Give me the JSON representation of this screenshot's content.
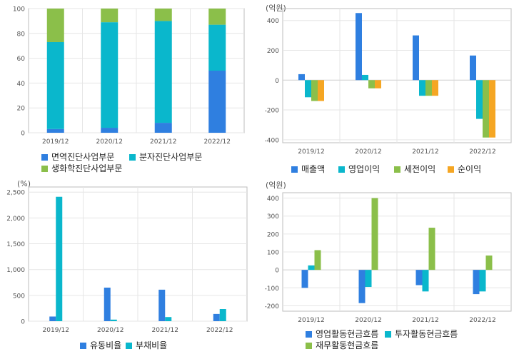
{
  "colors": {
    "blue": "#2f7fe0",
    "cyan": "#0ab7cc",
    "green": "#8bbf4a",
    "orange": "#f5a623",
    "grid": "#e6e6e6",
    "axis": "#bdbdbd"
  },
  "chart_data": [
    {
      "type": "bar",
      "stacked": true,
      "unit_label": "",
      "categories": [
        "2019/12",
        "2020/12",
        "2021/12",
        "2022/12"
      ],
      "series": [
        {
          "name": "면역진단사업부문",
          "color": "#2f7fe0",
          "values": [
            3,
            4,
            8,
            50
          ]
        },
        {
          "name": "분자진단사업부문",
          "color": "#0ab7cc",
          "values": [
            70,
            85,
            82,
            37
          ]
        },
        {
          "name": "생화학진단사업부문",
          "color": "#8bbf4a",
          "values": [
            27,
            11,
            10,
            13
          ]
        }
      ],
      "ylim": [
        0,
        100
      ],
      "yticks": [
        0,
        20,
        40,
        60,
        80,
        100
      ],
      "ytick_labels": [
        "0",
        "20",
        "40",
        "60",
        "80",
        "100"
      ],
      "grid": true
    },
    {
      "type": "bar",
      "unit_label": "(억원)",
      "categories": [
        "2019/12",
        "2020/12",
        "2021/12",
        "2022/12"
      ],
      "series": [
        {
          "name": "매출액",
          "color": "#2f7fe0",
          "values": [
            40,
            450,
            300,
            165
          ]
        },
        {
          "name": "영업이익",
          "color": "#0ab7cc",
          "values": [
            -115,
            35,
            -105,
            -260
          ]
        },
        {
          "name": "세전이익",
          "color": "#8bbf4a",
          "values": [
            -140,
            -55,
            -105,
            -385
          ]
        },
        {
          "name": "순이익",
          "color": "#f5a623",
          "values": [
            -140,
            -55,
            -105,
            -385
          ]
        }
      ],
      "ylim": [
        -420,
        480
      ],
      "yticks": [
        -400,
        -200,
        0,
        200,
        400
      ],
      "ytick_labels": [
        "-400",
        "-200",
        "0",
        "200",
        "400"
      ],
      "grid": true
    },
    {
      "type": "bar",
      "unit_label": "(%)",
      "categories": [
        "2019/12",
        "2020/12",
        "2021/12",
        "2022/12"
      ],
      "series": [
        {
          "name": "유동비율",
          "color": "#2f7fe0",
          "values": [
            90,
            650,
            610,
            140
          ]
        },
        {
          "name": "부채비율",
          "color": "#0ab7cc",
          "values": [
            2410,
            30,
            80,
            235
          ]
        }
      ],
      "ylim": [
        0,
        2600
      ],
      "yticks": [
        0,
        500,
        1000,
        1500,
        2000,
        2500
      ],
      "ytick_labels": [
        "0",
        "500",
        "1,000",
        "1,500",
        "2,000",
        "2,500"
      ],
      "grid": true
    },
    {
      "type": "bar",
      "unit_label": "(억원)",
      "categories": [
        "2019/12",
        "2020/12",
        "2021/12",
        "2022/12"
      ],
      "series": [
        {
          "name": "영업활동현금흐름",
          "color": "#2f7fe0",
          "values": [
            -100,
            -185,
            -85,
            -135
          ]
        },
        {
          "name": "투자활동현금흐름",
          "color": "#0ab7cc",
          "values": [
            25,
            -95,
            -120,
            -120
          ]
        },
        {
          "name": "재무활동현금흐름",
          "color": "#8bbf4a",
          "values": [
            110,
            400,
            235,
            80
          ]
        }
      ],
      "ylim": [
        -230,
        430
      ],
      "yticks": [
        -200,
        -100,
        0,
        100,
        200,
        300,
        400
      ],
      "ytick_labels": [
        "-200",
        "-100",
        "0",
        "100",
        "200",
        "300",
        "400"
      ],
      "grid": true
    }
  ]
}
